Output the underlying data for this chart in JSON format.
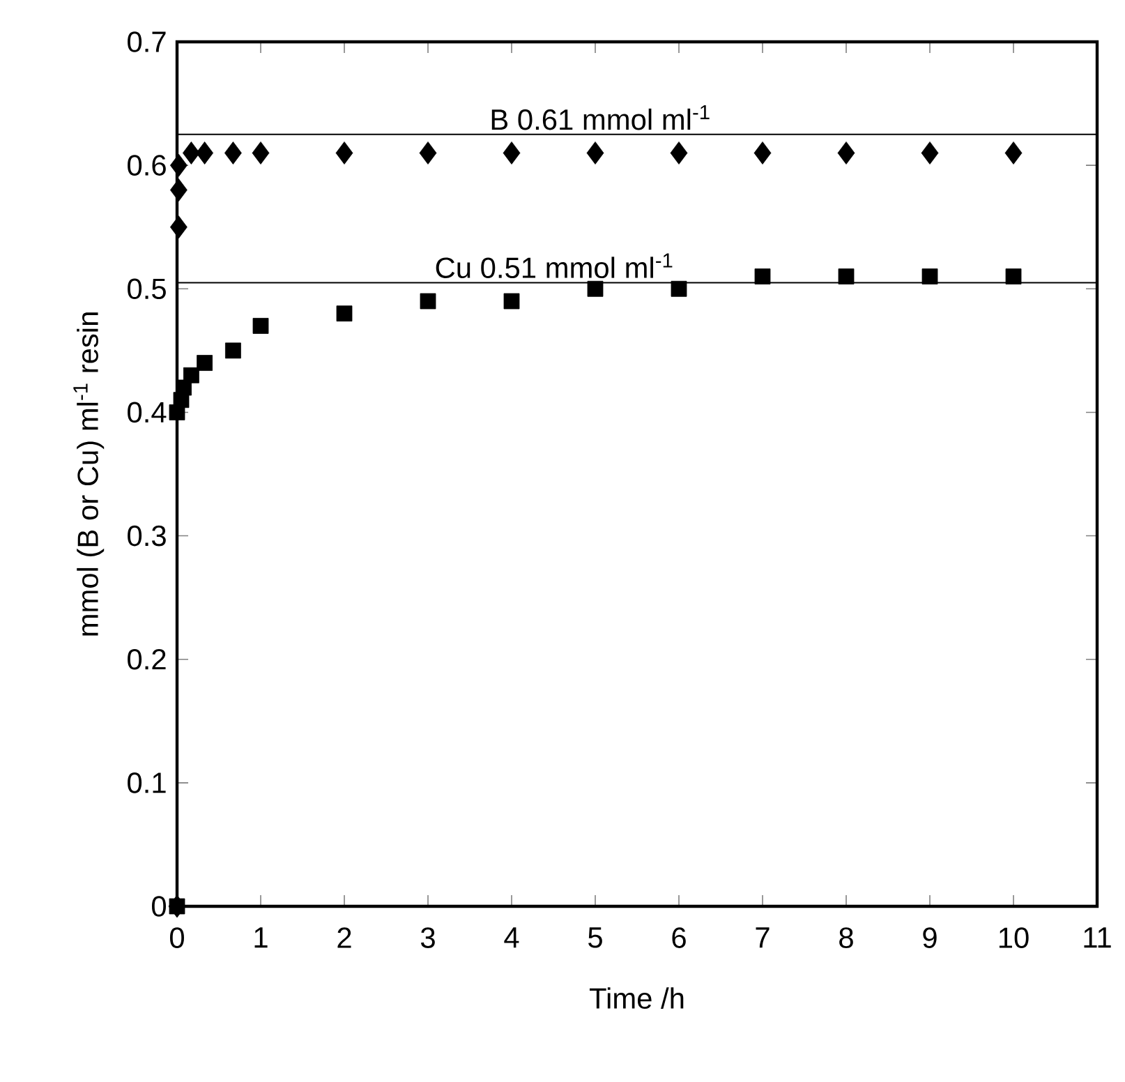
{
  "chart_data": {
    "type": "scatter",
    "xlabel": "Time /h",
    "ylabel": "mmol (B or Cu) ml$^{-1}$ resin",
    "xlim": [
      0,
      11
    ],
    "xticks": [
      0,
      1,
      2,
      3,
      4,
      5,
      6,
      7,
      8,
      9,
      10,
      11
    ],
    "ylim": [
      0,
      0.7
    ],
    "yticks": [
      0,
      0.1,
      0.2,
      0.3,
      0.4,
      0.5,
      0.6,
      0.7
    ],
    "grid": false,
    "series": [
      {
        "color": "#000000",
        "marker": "diamond",
        "x": [
          0,
          0.02,
          0.02,
          0.02,
          0.17,
          0.33,
          0.67,
          1,
          2,
          3,
          4,
          5,
          6,
          7,
          8,
          9,
          10
        ],
        "values": [
          0,
          0.55,
          0.58,
          0.6,
          0.61,
          0.61,
          0.61,
          0.61,
          0.61,
          0.61,
          0.61,
          0.61,
          0.61,
          0.61,
          0.61,
          0.61,
          0.61
        ]
      },
      {
        "color": "#000000",
        "marker": "square",
        "x": [
          0,
          0,
          0.05,
          0.08,
          0.17,
          0.33,
          0.67,
          1,
          2,
          3,
          4,
          5,
          6,
          7,
          8,
          9,
          10
        ],
        "values": [
          0,
          0.4,
          0.41,
          0.42,
          0.43,
          0.44,
          0.45,
          0.47,
          0.48,
          0.49,
          0.49,
          0.5,
          0.5,
          0.51,
          0.51,
          0.51,
          0.51
        ]
      }
    ],
    "ref_lines": [
      {
        "axis": "y",
        "value": 0.625,
        "label": "B  0.61 mmol ml$^{-1}$",
        "color": "#000000"
      },
      {
        "axis": "y",
        "value": 0.505,
        "label": "Cu  0.51 mmol ml$^{-1}$",
        "color": "#000000"
      }
    ]
  }
}
